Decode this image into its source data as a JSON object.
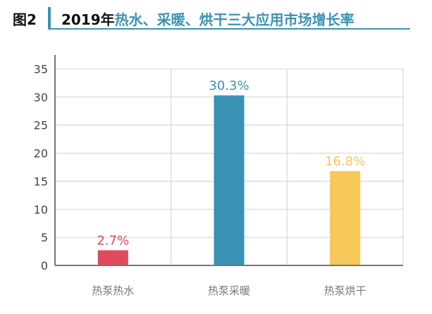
{
  "figure_label": "图2",
  "title_year": "2019年",
  "title_rest": "热水、采暖、烘干三大应用市场增长率",
  "chart_data": {
    "type": "bar",
    "title": "2019年热水、采暖、烘干三大应用市场增长率",
    "categories": [
      "热泵热水",
      "热泵采暖",
      "热泵烘干"
    ],
    "values": [
      2.7,
      30.3,
      16.8
    ],
    "data_labels": [
      "2.7%",
      "30.3%",
      "16.8%"
    ],
    "colors": [
      "#e04a5a",
      "#3a93b4",
      "#f7c85a"
    ],
    "ylim": [
      0,
      35
    ],
    "yticks": [
      0,
      5,
      10,
      15,
      20,
      25,
      30,
      35
    ],
    "xlabel": "",
    "ylabel": "",
    "grid": true,
    "legend": "none"
  }
}
